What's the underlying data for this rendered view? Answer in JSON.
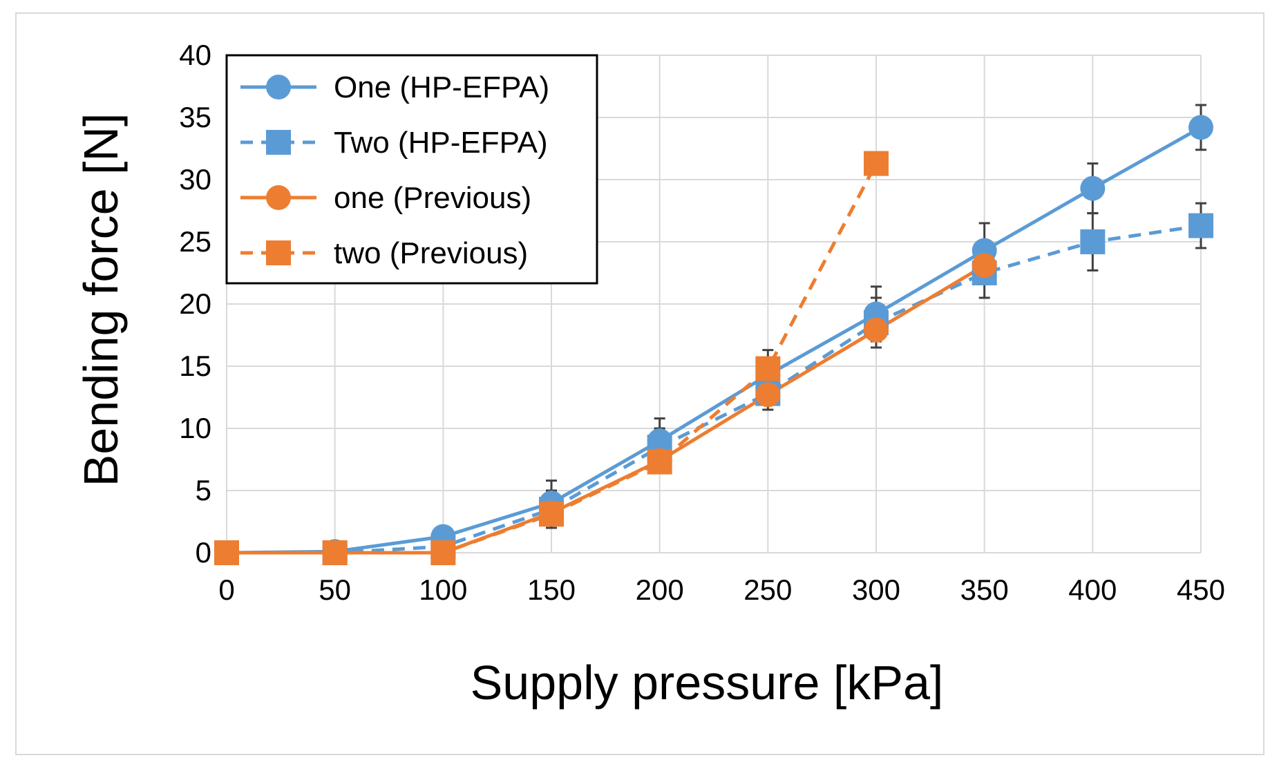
{
  "chart_data": {
    "type": "line",
    "title": "",
    "xlabel": "Supply pressure [kPa]",
    "ylabel": "Bending force [N]",
    "xlim": [
      0,
      450
    ],
    "ylim": [
      0,
      40
    ],
    "x_ticks": [
      0,
      50,
      100,
      150,
      200,
      250,
      300,
      350,
      400,
      450
    ],
    "y_ticks": [
      0,
      5,
      10,
      15,
      20,
      25,
      30,
      35,
      40
    ],
    "grid": true,
    "legend_position": "top-left",
    "series": [
      {
        "name": "One (HP-EFPA)",
        "color": "#5b9bd5",
        "line_style": "solid",
        "marker": "circle",
        "x": [
          0,
          50,
          100,
          150,
          200,
          250,
          300,
          350,
          400,
          450
        ],
        "values": [
          0,
          0.1,
          1.3,
          4.0,
          9.0,
          14.3,
          19.2,
          24.3,
          29.3,
          34.2
        ],
        "errors": [
          0,
          0.2,
          0.8,
          1.8,
          1.8,
          2.0,
          2.2,
          2.2,
          2.0,
          1.8
        ]
      },
      {
        "name": "Two (HP-EFPA)",
        "color": "#5b9bd5",
        "line_style": "dashed",
        "marker": "square",
        "x": [
          0,
          50,
          100,
          150,
          200,
          250,
          300,
          350,
          400,
          450
        ],
        "values": [
          0,
          0,
          0.5,
          3.5,
          8.5,
          12.8,
          18.5,
          22.5,
          25.0,
          26.3
        ],
        "errors": [
          0,
          0.2,
          0.5,
          1.5,
          1.5,
          1.3,
          2.0,
          2.0,
          2.3,
          1.8
        ]
      },
      {
        "name": "one (Previous)",
        "color": "#ed7d31",
        "line_style": "solid",
        "marker": "circle",
        "x": [
          0,
          50,
          100,
          150,
          200,
          250,
          300,
          350
        ],
        "values": [
          0,
          0,
          0,
          3.2,
          7.4,
          12.7,
          17.9,
          23.1
        ],
        "errors": []
      },
      {
        "name": "two (Previous)",
        "color": "#ed7d31",
        "line_style": "dashed",
        "marker": "square",
        "x": [
          0,
          50,
          100,
          150,
          200,
          250,
          300
        ],
        "values": [
          0,
          0,
          0,
          3.1,
          7.3,
          14.8,
          31.3
        ],
        "errors": []
      }
    ]
  }
}
